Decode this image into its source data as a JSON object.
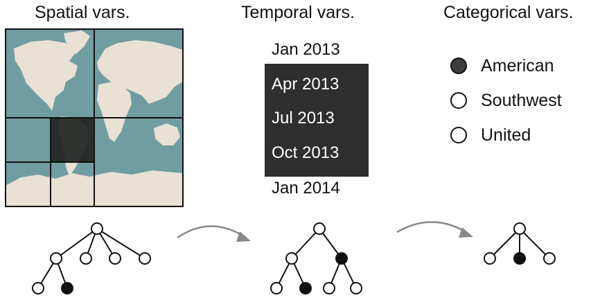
{
  "headings": {
    "spatial": "Spatial vars.",
    "temporal": "Temporal vars.",
    "categorical": "Categorical vars."
  },
  "temporal": {
    "items": [
      {
        "label": "Jan 2013",
        "selected": false
      },
      {
        "label": "Apr 2013",
        "selected": true
      },
      {
        "label": "Jul 2013",
        "selected": true
      },
      {
        "label": "Oct 2013",
        "selected": true
      },
      {
        "label": "Jan 2014",
        "selected": false
      }
    ]
  },
  "categorical": {
    "items": [
      {
        "label": "American",
        "selected": true
      },
      {
        "label": "Southwest",
        "selected": false
      },
      {
        "label": "United",
        "selected": false
      }
    ]
  },
  "colors": {
    "ocean": "#6f9da1",
    "land": "#e8e1d4",
    "highlight": "#1f2422",
    "box": "#2f2f2f",
    "arrow": "#888888"
  },
  "icons": {
    "map": "world-map-quadtree",
    "arrows": [
      "curved-arrow-icon",
      "curved-arrow-icon"
    ]
  }
}
